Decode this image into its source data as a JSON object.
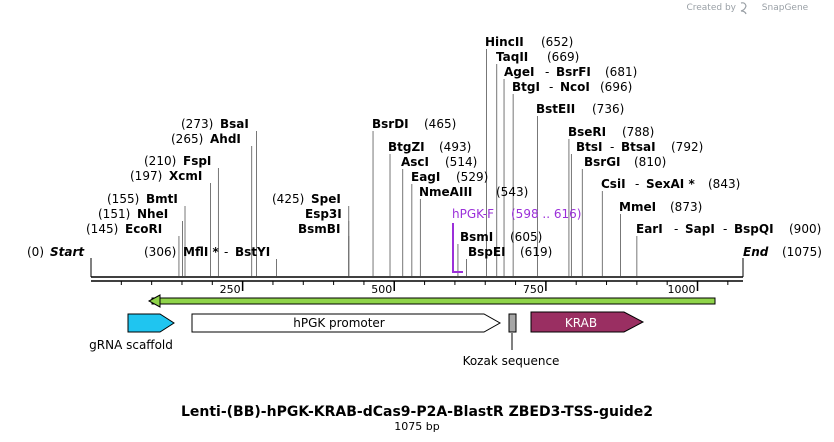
{
  "credit": {
    "created_by": "Created by",
    "brand": "SnapGene"
  },
  "sequence": {
    "length": 1075,
    "title": "Lenti-(BB)-hPGK-KRAB-dCas9-P2A-BlastR ZBED3-TSS-guide2",
    "length_label": "1075 bp"
  },
  "ends": {
    "start_label": "Start",
    "start_pos": "(0)",
    "end_label": "End",
    "end_pos": "(1075)"
  },
  "ticks": [
    250,
    500,
    750,
    1000
  ],
  "sites": [
    {
      "parts": [
        "EcoRI"
      ],
      "pos": 145
    },
    {
      "parts": [
        "NheI"
      ],
      "pos": 151
    },
    {
      "parts": [
        "BmtI"
      ],
      "pos": 155
    },
    {
      "parts": [
        "XcmI"
      ],
      "pos": 197
    },
    {
      "parts": [
        "FspI"
      ],
      "pos": 210
    },
    {
      "parts": [
        "AhdI"
      ],
      "pos": 265
    },
    {
      "parts": [
        "BsaI"
      ],
      "pos": 273
    },
    {
      "parts": [
        "MflI *",
        "BstYI"
      ],
      "pos": 306
    },
    {
      "parts": [
        "BsmBI"
      ],
      "pos": 425
    },
    {
      "parts": [
        "Esp3I"
      ],
      "pos": 425
    },
    {
      "parts": [
        "SpeI"
      ],
      "pos": 425
    },
    {
      "parts": [
        "BsrDI"
      ],
      "pos": 465
    },
    {
      "parts": [
        "BtgZI"
      ],
      "pos": 493
    },
    {
      "parts": [
        "AscI"
      ],
      "pos": 514
    },
    {
      "parts": [
        "EagI"
      ],
      "pos": 529
    },
    {
      "parts": [
        "NmeAIII"
      ],
      "pos": 543
    },
    {
      "parts": [
        "BsmI"
      ],
      "pos": 605
    },
    {
      "parts": [
        "BspEI"
      ],
      "pos": 619
    },
    {
      "parts": [
        "HincII"
      ],
      "pos": 652
    },
    {
      "parts": [
        "TaqII"
      ],
      "pos": 669
    },
    {
      "parts": [
        "AgeI",
        "BsrFI"
      ],
      "pos": 681
    },
    {
      "parts": [
        "BtgI",
        "NcoI"
      ],
      "pos": 696
    },
    {
      "parts": [
        "BstEII"
      ],
      "pos": 736
    },
    {
      "parts": [
        "BseRI"
      ],
      "pos": 788
    },
    {
      "parts": [
        "BtsI",
        "BtsaI"
      ],
      "pos": 792
    },
    {
      "parts": [
        "BsrGI"
      ],
      "pos": 810
    },
    {
      "parts": [
        "CsiI",
        "SexAI *"
      ],
      "pos": 843
    },
    {
      "parts": [
        "MmeI"
      ],
      "pos": 873
    },
    {
      "parts": [
        "EarI",
        "SapI",
        "BspQI"
      ],
      "pos": 900
    }
  ],
  "primer": {
    "name": "hPGK-F",
    "range": "(598 .. 616)"
  },
  "features": [
    {
      "name": "gRNA scaffold",
      "color": "#1fc5f0"
    },
    {
      "name": "hPGK promoter",
      "color": "#ffffff"
    },
    {
      "name": "Kozak sequence",
      "color": "#a6a6a6"
    },
    {
      "name": "KRAB",
      "color": "#9a2f62"
    }
  ],
  "colors": {
    "primer": "#9b30d9",
    "green_bar": "#8fd44a"
  }
}
